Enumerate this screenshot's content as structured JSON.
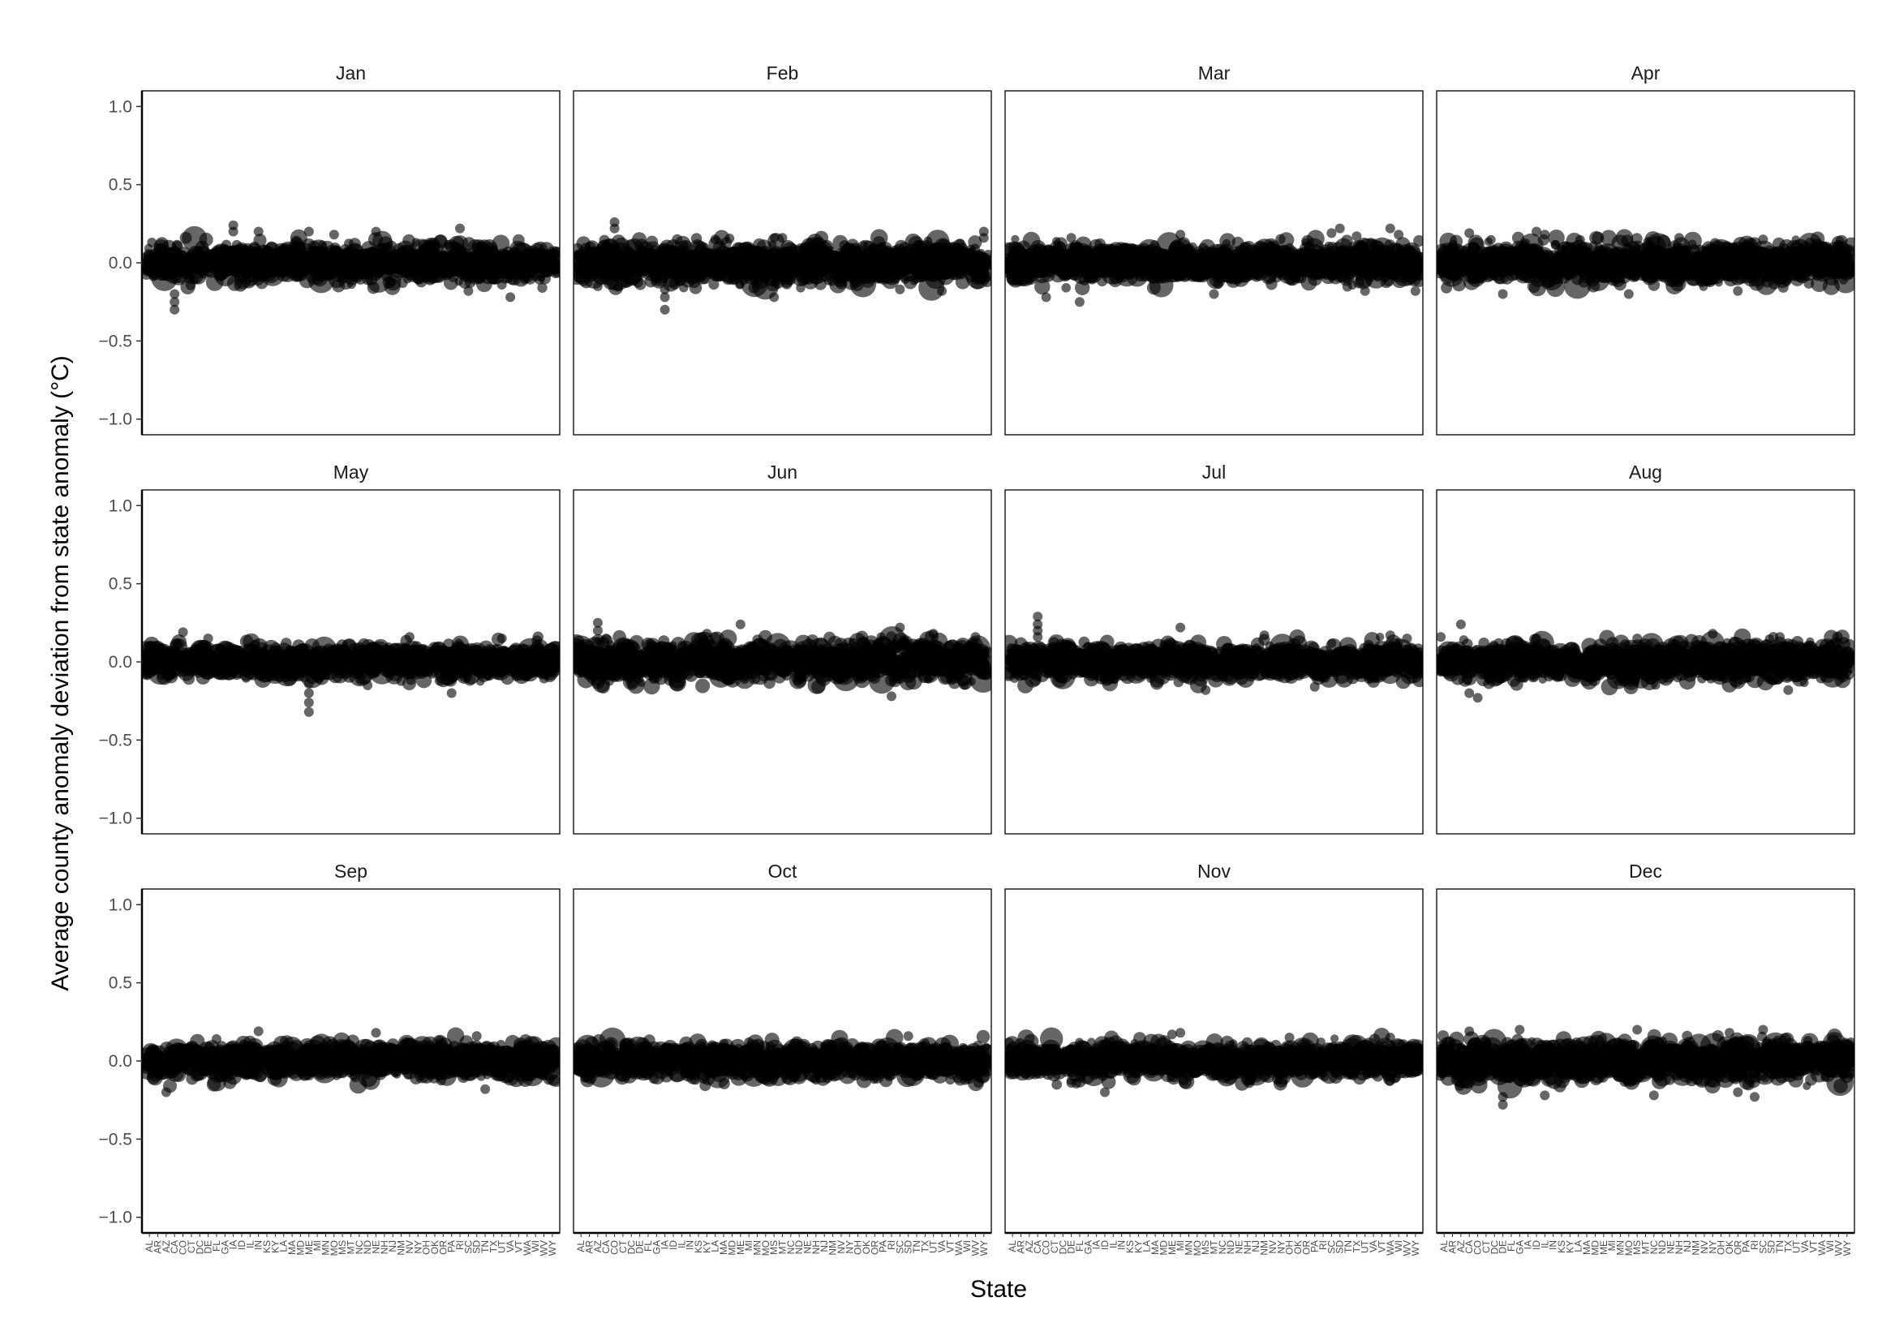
{
  "chart_data": {
    "type": "scatter",
    "xlabel": "State",
    "ylabel": "Average county anomaly deviation from state anomaly (°C)",
    "ylim": [
      -1.1,
      1.1
    ],
    "yticks": [
      1.0,
      0.5,
      0.0,
      -0.5,
      -1.0
    ],
    "ytick_labels": [
      "1.0",
      "0.5",
      "0.0",
      "−0.5",
      "−1.0"
    ],
    "grid": false,
    "categories": [
      "AL",
      "AR",
      "AZ",
      "CA",
      "CO",
      "CT",
      "DC",
      "DE",
      "FL",
      "GA",
      "IA",
      "ID",
      "IL",
      "IN",
      "KS",
      "KY",
      "LA",
      "MA",
      "MD",
      "ME",
      "MI",
      "MN",
      "MO",
      "MS",
      "MT",
      "NC",
      "ND",
      "NE",
      "NH",
      "NJ",
      "NM",
      "NV",
      "NY",
      "OH",
      "OK",
      "OR",
      "PA",
      "RI",
      "SC",
      "SD",
      "TN",
      "TX",
      "UT",
      "VA",
      "VT",
      "WA",
      "WI",
      "WV",
      "WY"
    ],
    "point_color": "#000000",
    "point_opacity": 0.6,
    "facets": [
      {
        "title": "Jan",
        "spread": 0.055,
        "points": [
          [
            3,
            -0.3
          ],
          [
            3,
            -0.25
          ],
          [
            3,
            -0.2
          ],
          [
            10,
            0.24
          ],
          [
            10,
            0.2
          ],
          [
            13,
            0.2
          ],
          [
            19,
            0.2
          ],
          [
            22,
            0.18
          ],
          [
            27,
            0.2
          ],
          [
            37,
            0.22
          ],
          [
            38,
            -0.18
          ],
          [
            42,
            -0.14
          ],
          [
            43,
            -0.22
          ]
        ]
      },
      {
        "title": "Feb",
        "spread": 0.06,
        "points": [
          [
            4,
            0.26
          ],
          [
            4,
            0.22
          ],
          [
            2,
            -0.15
          ],
          [
            10,
            -0.3
          ],
          [
            10,
            -0.22
          ],
          [
            10,
            -0.17
          ],
          [
            16,
            0.15
          ],
          [
            23,
            -0.22
          ],
          [
            24,
            0.16
          ],
          [
            38,
            -0.17
          ],
          [
            43,
            -0.18
          ],
          [
            48,
            0.2
          ],
          [
            48,
            0.16
          ]
        ]
      },
      {
        "title": "Mar",
        "spread": 0.055,
        "points": [
          [
            4,
            -0.22
          ],
          [
            8,
            -0.25
          ],
          [
            7,
            0.16
          ],
          [
            20,
            0.18
          ],
          [
            24,
            -0.2
          ],
          [
            38,
            0.19
          ],
          [
            39,
            0.22
          ],
          [
            41,
            0.17
          ],
          [
            42,
            -0.18
          ],
          [
            45,
            0.22
          ],
          [
            46,
            0.18
          ],
          [
            48,
            -0.18
          ]
        ]
      },
      {
        "title": "Apr",
        "spread": 0.06,
        "points": [
          [
            3,
            0.19
          ],
          [
            7,
            -0.2
          ],
          [
            11,
            0.2
          ],
          [
            12,
            0.18
          ],
          [
            22,
            -0.2
          ],
          [
            28,
            0.16
          ],
          [
            35,
            -0.18
          ],
          [
            38,
            0.15
          ]
        ]
      },
      {
        "title": "May",
        "spread": 0.05,
        "points": [
          [
            4,
            0.19
          ],
          [
            7,
            0.15
          ],
          [
            19,
            -0.32
          ],
          [
            19,
            -0.26
          ],
          [
            19,
            -0.2
          ],
          [
            19,
            -0.14
          ],
          [
            26,
            -0.15
          ],
          [
            31,
            0.16
          ],
          [
            36,
            -0.2
          ],
          [
            42,
            0.15
          ]
        ]
      },
      {
        "title": "Jun",
        "spread": 0.06,
        "points": [
          [
            2,
            0.25
          ],
          [
            2,
            0.2
          ],
          [
            3,
            0.15
          ],
          [
            15,
            0.18
          ],
          [
            19,
            0.24
          ],
          [
            37,
            -0.22
          ],
          [
            38,
            0.22
          ],
          [
            42,
            0.18
          ],
          [
            47,
            0.16
          ]
        ]
      },
      {
        "title": "Jul",
        "spread": 0.05,
        "points": [
          [
            3,
            0.29
          ],
          [
            3,
            0.24
          ],
          [
            3,
            0.2
          ],
          [
            3,
            0.16
          ],
          [
            20,
            0.22
          ],
          [
            23,
            -0.18
          ],
          [
            30,
            0.17
          ],
          [
            36,
            -0.16
          ],
          [
            45,
            0.17
          ],
          [
            47,
            0.15
          ]
        ]
      },
      {
        "title": "Aug",
        "spread": 0.055,
        "points": [
          [
            2,
            0.24
          ],
          [
            3,
            -0.2
          ],
          [
            4,
            -0.23
          ],
          [
            11,
            0.15
          ],
          [
            23,
            0.15
          ],
          [
            32,
            0.18
          ],
          [
            40,
            0.16
          ],
          [
            41,
            -0.18
          ]
        ]
      },
      {
        "title": "Sep",
        "spread": 0.05,
        "points": [
          [
            2,
            -0.2
          ],
          [
            13,
            0.19
          ],
          [
            27,
            0.18
          ],
          [
            39,
            0.16
          ],
          [
            40,
            -0.18
          ],
          [
            8,
            0.14
          ]
        ]
      },
      {
        "title": "Oct",
        "spread": 0.05,
        "points": [
          [
            17,
            0.11
          ],
          [
            20,
            0.12
          ],
          [
            39,
            0.16
          ],
          [
            28,
            -0.12
          ],
          [
            44,
            -0.12
          ]
        ]
      },
      {
        "title": "Nov",
        "spread": 0.05,
        "points": [
          [
            11,
            -0.2
          ],
          [
            19,
            0.17
          ],
          [
            20,
            0.18
          ],
          [
            33,
            0.15
          ],
          [
            45,
            0.15
          ],
          [
            7,
            -0.14
          ]
        ]
      },
      {
        "title": "Dec",
        "spread": 0.06,
        "points": [
          [
            3,
            0.19
          ],
          [
            7,
            -0.28
          ],
          [
            7,
            -0.23
          ],
          [
            9,
            0.2
          ],
          [
            12,
            -0.22
          ],
          [
            23,
            0.2
          ],
          [
            25,
            -0.22
          ],
          [
            34,
            0.18
          ],
          [
            35,
            -0.2
          ],
          [
            37,
            -0.23
          ],
          [
            38,
            0.2
          ]
        ]
      }
    ]
  }
}
